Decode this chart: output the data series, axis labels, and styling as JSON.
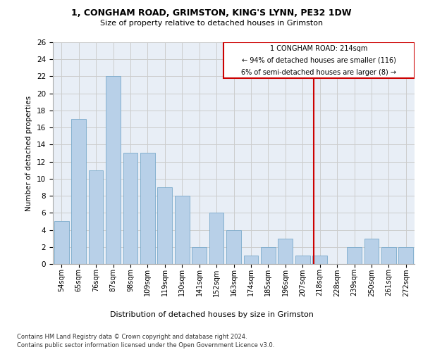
{
  "title": "1, CONGHAM ROAD, GRIMSTON, KING'S LYNN, PE32 1DW",
  "subtitle": "Size of property relative to detached houses in Grimston",
  "xlabel": "Distribution of detached houses by size in Grimston",
  "ylabel": "Number of detached properties",
  "categories": [
    "54sqm",
    "65sqm",
    "76sqm",
    "87sqm",
    "98sqm",
    "109sqm",
    "119sqm",
    "130sqm",
    "141sqm",
    "152sqm",
    "163sqm",
    "174sqm",
    "185sqm",
    "196sqm",
    "207sqm",
    "218sqm",
    "228sqm",
    "239sqm",
    "250sqm",
    "261sqm",
    "272sqm"
  ],
  "values": [
    5,
    17,
    11,
    22,
    13,
    13,
    9,
    8,
    2,
    6,
    4,
    1,
    2,
    3,
    1,
    1,
    0,
    2,
    3,
    2,
    2
  ],
  "bar_color": "#b8d0e8",
  "bar_edge_color": "#7aaacb",
  "bar_linewidth": 0.6,
  "vline_color": "#cc0000",
  "annotation_line1": "1 CONGHAM ROAD: 214sqm",
  "annotation_line2": "← 94% of detached houses are smaller (116)",
  "annotation_line3": "6% of semi-detached houses are larger (8) →",
  "ylim": [
    0,
    26
  ],
  "yticks": [
    0,
    2,
    4,
    6,
    8,
    10,
    12,
    14,
    16,
    18,
    20,
    22,
    24,
    26
  ],
  "grid_color": "#cccccc",
  "bg_color": "#e8eef6",
  "footnote1": "Contains HM Land Registry data © Crown copyright and database right 2024.",
  "footnote2": "Contains public sector information licensed under the Open Government Licence v3.0."
}
